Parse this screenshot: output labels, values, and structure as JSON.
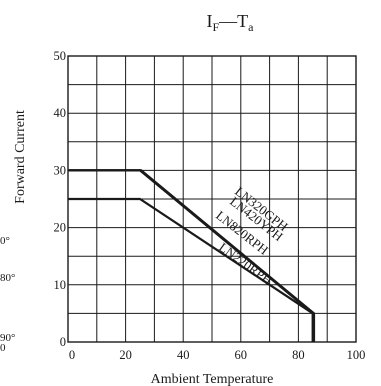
{
  "chart_data": {
    "type": "line",
    "title": {
      "main_left": "I",
      "main_left_sub": "F",
      "separator": "—",
      "main_right": "T",
      "main_right_sub": "a"
    },
    "xlabel": "Ambient Temperature",
    "ylabel": "Forward Current",
    "xlim": [
      0,
      100
    ],
    "ylim": [
      0,
      50
    ],
    "x_ticks": [
      "0",
      "20",
      "40",
      "60",
      "80",
      "100"
    ],
    "y_ticks": [
      "0",
      "10",
      "20",
      "30",
      "40",
      "50"
    ],
    "grid": true,
    "series": [
      {
        "name": "LN320GPH",
        "x": [
          0,
          25,
          85,
          85
        ],
        "y": [
          30,
          30,
          5,
          0
        ]
      },
      {
        "name": "LN420YPH",
        "x": [
          0,
          25,
          85,
          85
        ],
        "y": [
          30,
          30,
          5,
          0
        ]
      },
      {
        "name": "LN820RPH",
        "x": [
          0,
          25,
          85,
          85
        ],
        "y": [
          30,
          30,
          5,
          0
        ]
      },
      {
        "name": "LN220RPH",
        "x": [
          0,
          25,
          85,
          85
        ],
        "y": [
          25,
          25,
          5,
          0
        ]
      }
    ],
    "edge_text": [
      "0°",
      "80°",
      "90°",
      "0"
    ]
  },
  "colors": {
    "line": "#1a1a1a",
    "grid": "#1a1a1a"
  }
}
